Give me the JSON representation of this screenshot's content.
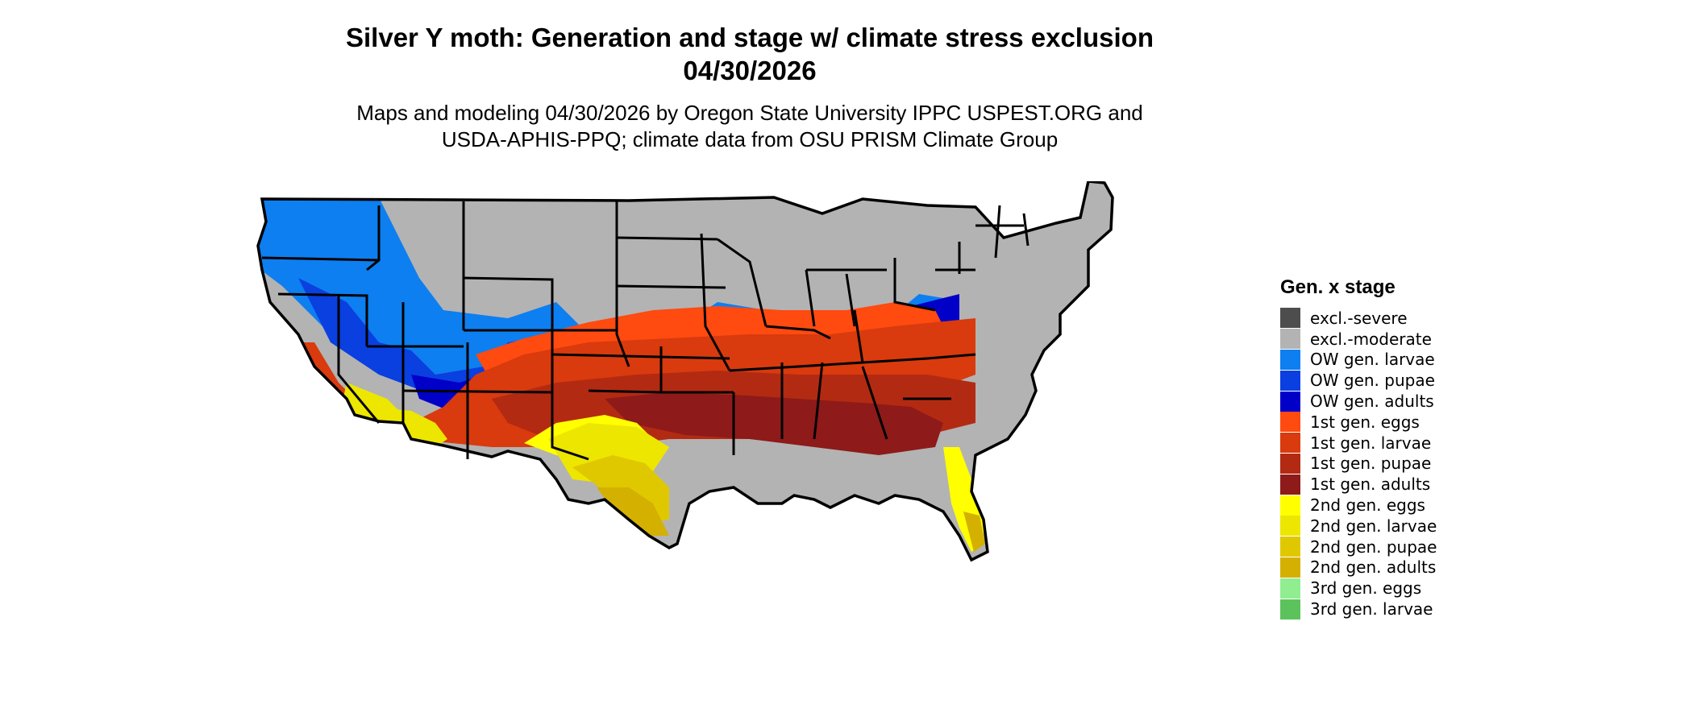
{
  "title_line1": "Silver Y moth: Generation and stage w/ climate stress exclusion",
  "title_line2": "04/30/2026",
  "subtitle_line1": "Maps and modeling 04/30/2026 by Oregon State University IPPC USPEST.ORG and",
  "subtitle_line2": "USDA-APHIS-PPQ; climate data from OSU PRISM Climate Group",
  "legend": {
    "title": "Gen. x stage",
    "items": [
      {
        "label": "excl.-severe",
        "color": "#4d4d4d"
      },
      {
        "label": "excl.-moderate",
        "color": "#b3b3b3"
      },
      {
        "label": "OW gen. larvae",
        "color": "#0d7ff0"
      },
      {
        "label": "OW gen. pupae",
        "color": "#0a3fe0"
      },
      {
        "label": "OW gen. adults",
        "color": "#0000c8"
      },
      {
        "label": "1st gen. eggs",
        "color": "#ff4a10"
      },
      {
        "label": "1st gen. larvae",
        "color": "#d93a0e"
      },
      {
        "label": "1st gen. pupae",
        "color": "#b32a12"
      },
      {
        "label": "1st gen. adults",
        "color": "#8e1a1a"
      },
      {
        "label": "2nd gen. eggs",
        "color": "#ffff00"
      },
      {
        "label": "2nd gen. larvae",
        "color": "#ede600"
      },
      {
        "label": "2nd gen. pupae",
        "color": "#e0c800"
      },
      {
        "label": "2nd gen. adults",
        "color": "#d4b000"
      },
      {
        "label": "3rd gen. eggs",
        "color": "#90ee90"
      },
      {
        "label": "3rd gen. larvae",
        "color": "#5cc35c"
      }
    ]
  }
}
